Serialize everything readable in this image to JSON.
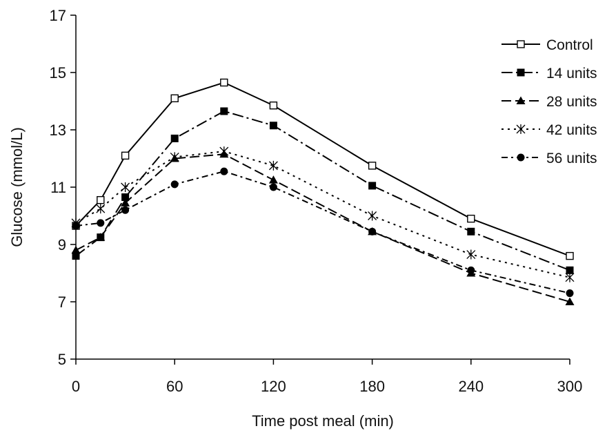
{
  "chart_data": {
    "type": "line",
    "title": "",
    "xlabel": "Time post meal (min)",
    "ylabel": "Glucose (mmol/L)",
    "xlim": [
      0,
      300
    ],
    "ylim": [
      5,
      17
    ],
    "xticks": [
      0,
      60,
      120,
      180,
      240,
      300
    ],
    "yticks": [
      5,
      7,
      9,
      11,
      13,
      15,
      17
    ],
    "grid": false,
    "legend_position": "top-right",
    "x": [
      0,
      15,
      30,
      60,
      90,
      120,
      180,
      240,
      300
    ],
    "series": [
      {
        "name": "Control",
        "marker": "open-square",
        "dash": "solid",
        "color": "#000000",
        "values": [
          9.65,
          10.55,
          12.1,
          14.1,
          14.65,
          13.85,
          11.75,
          9.9,
          8.6
        ]
      },
      {
        "name": "14 units",
        "marker": "filled-square",
        "dash": "long-dash-dot",
        "color": "#000000",
        "values": [
          8.6,
          9.25,
          10.65,
          12.7,
          13.65,
          13.15,
          11.05,
          9.45,
          8.1
        ]
      },
      {
        "name": "28 units",
        "marker": "filled-triangle",
        "dash": "long-dash",
        "color": "#000000",
        "values": [
          8.8,
          9.25,
          10.45,
          12.0,
          12.15,
          11.25,
          9.45,
          8.0,
          7.0
        ]
      },
      {
        "name": "42 units",
        "marker": "asterisk",
        "dash": "dotted",
        "color": "#000000",
        "values": [
          9.75,
          10.25,
          11.0,
          12.05,
          12.25,
          11.75,
          10.0,
          8.65,
          7.85
        ]
      },
      {
        "name": "56 units",
        "marker": "filled-circle",
        "dash": "dash-dot",
        "color": "#000000",
        "values": [
          9.65,
          9.75,
          10.2,
          11.1,
          11.55,
          11.0,
          9.45,
          8.1,
          7.3
        ]
      }
    ]
  }
}
